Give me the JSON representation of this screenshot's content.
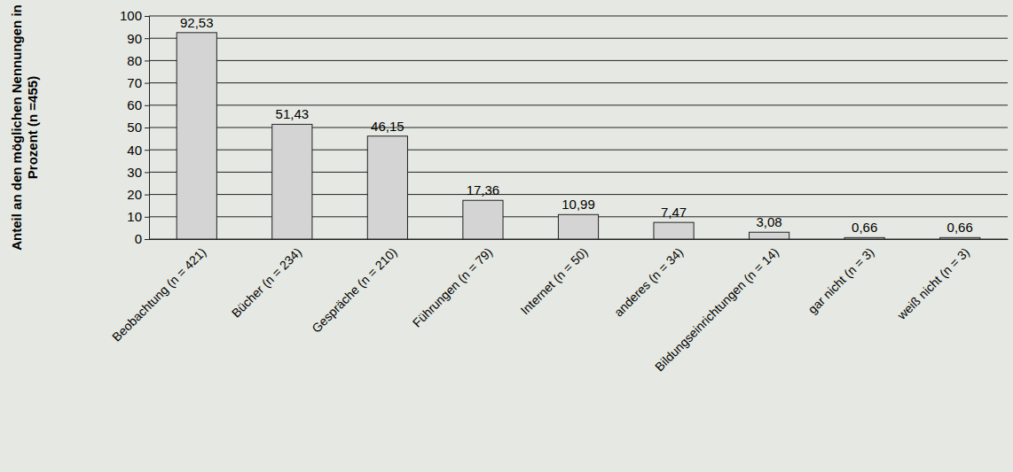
{
  "chart_data": {
    "type": "bar",
    "y_label": "Anteil an den möglichen Nennungen in Prozent (n =455)",
    "categories": [
      "Beobachtung (n = 421)",
      "Bücher (n = 234)",
      "Gespräche (n = 210)",
      "Führungen (n = 79)",
      "Internet (n = 50)",
      "anderes (n = 34)",
      "Bildungseinrichtungen (n = 14)",
      "gar nicht (n = 3)",
      "weiß nicht (n = 3)"
    ],
    "values": [
      92.53,
      51.43,
      46.15,
      17.36,
      10.99,
      7.47,
      3.08,
      0.66,
      0.66
    ],
    "value_labels": [
      "92,53",
      "51,43",
      "46,15",
      "17,36",
      "10,99",
      "7,47",
      "3,08",
      "0,66",
      "0,66"
    ],
    "color": "#d4d4d4",
    "ylim": [
      0,
      100
    ],
    "yticks": [
      0,
      10,
      20,
      30,
      40,
      50,
      60,
      70,
      80,
      90,
      100
    ],
    "grid": true,
    "data_labels": true
  }
}
